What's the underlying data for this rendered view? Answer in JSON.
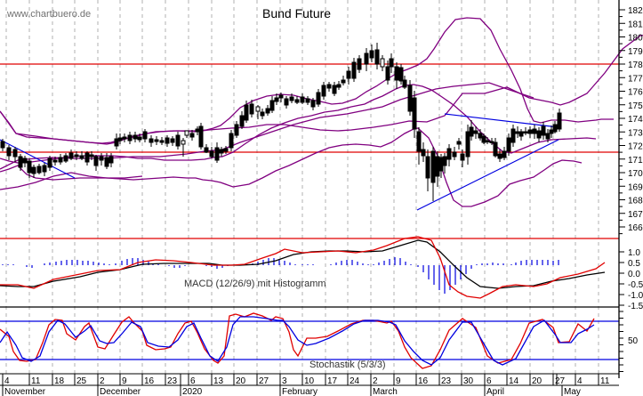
{
  "watermark": "www.chartbuero.de",
  "title": "Bund Future",
  "macd_label": "MACD (12/26/9) mit Histogramm",
  "stoch_label": "Stochastik (5/3/3)",
  "colors": {
    "resistance": "#e00000",
    "bollinger": "#800080",
    "trendline": "#0000e0",
    "macd": "#000000",
    "signal": "#e00000",
    "histogram": "#0000e0",
    "stoch_k": "#e00000",
    "stoch_d": "#0000e0",
    "grid": "#b0b0b0"
  },
  "chart_data": [
    {
      "type": "candlestick",
      "title": "Bund Future",
      "ylabel": "",
      "ylim": [
        166,
        182
      ],
      "yticks": [
        "182",
        "181",
        "180",
        "179",
        "178",
        "177",
        "176",
        "175",
        "174",
        "173",
        "172",
        "171",
        "170",
        "169",
        "168",
        "167",
        "166"
      ],
      "horizontal_lines": [
        177.9,
        171.3,
        166.9
      ],
      "overlays": [
        "Bollinger Bands",
        "Trendlines"
      ],
      "x_date_ticks": [
        "4",
        "11",
        "18",
        "25",
        "2",
        "9",
        "16",
        "23",
        "6",
        "13",
        "20",
        "27",
        "3",
        "10",
        "17",
        "24",
        "2",
        "9",
        "16",
        "23",
        "30",
        "6",
        "14",
        "20",
        "27",
        "4",
        "11"
      ],
      "x_month_labels": [
        "November",
        "December",
        "2020",
        "February",
        "March",
        "April",
        "May"
      ],
      "approx_close_path": [
        {
          "date": "Nov 1",
          "value": 172.2
        },
        {
          "date": "Nov 11",
          "value": 169.8
        },
        {
          "date": "Nov 25",
          "value": 171.2
        },
        {
          "date": "Dec 9",
          "value": 172.5
        },
        {
          "date": "Dec 23",
          "value": 172.2
        },
        {
          "date": "Jan 13",
          "value": 171.2
        },
        {
          "date": "Jan 27",
          "value": 174.2
        },
        {
          "date": "Feb 10",
          "value": 174.0
        },
        {
          "date": "Feb 24",
          "value": 176.5
        },
        {
          "date": "Mar 2",
          "value": 178.6
        },
        {
          "date": "Mar 9",
          "value": 175.8
        },
        {
          "date": "Mar 18",
          "value": 168.3
        },
        {
          "date": "Mar 30",
          "value": 173.5
        },
        {
          "date": "Apr 8",
          "value": 170.4
        },
        {
          "date": "Apr 20",
          "value": 173.0
        },
        {
          "date": "Apr 30",
          "value": 174.4
        }
      ]
    },
    {
      "type": "line",
      "title": "MACD (12/26/9) mit Histogramm",
      "ylim": [
        -1.5,
        1.0
      ],
      "yticks": [
        "1.0",
        "0.5",
        "0.0",
        "-0.5",
        "-1.0",
        "-1.5"
      ],
      "series": [
        {
          "name": "MACD",
          "color": "#000000"
        },
        {
          "name": "Signal",
          "color": "#e00000"
        },
        {
          "name": "Histogramm",
          "color": "#0000e0"
        }
      ]
    },
    {
      "type": "line",
      "title": "Stochastik (5/3/3)",
      "yticks": [
        "50"
      ],
      "horizontal_lines": [
        80,
        20
      ],
      "series": [
        {
          "name": "%K",
          "color": "#e00000"
        },
        {
          "name": "%D",
          "color": "#0000e0"
        }
      ]
    }
  ],
  "price_axis": [
    "182",
    "181",
    "180",
    "179",
    "178",
    "177",
    "176",
    "175",
    "174",
    "173",
    "172",
    "171",
    "170",
    "169",
    "168",
    "167",
    "166"
  ],
  "macd_axis": [
    "1.0",
    "0.5",
    "0.0",
    "-0.5",
    "-1.0",
    "-1.5"
  ],
  "stoch_axis": [
    "50"
  ],
  "date_ticks": [
    "4",
    "11",
    "18",
    "25",
    "2",
    "9",
    "16",
    "23",
    "6",
    "13",
    "20",
    "27",
    "3",
    "10",
    "17",
    "24",
    "2",
    "9",
    "16",
    "23",
    "30",
    "6",
    "14",
    "20",
    "27",
    "4",
    "11"
  ],
  "months": [
    "November",
    "December",
    "2020",
    "February",
    "March",
    "April",
    "May"
  ]
}
